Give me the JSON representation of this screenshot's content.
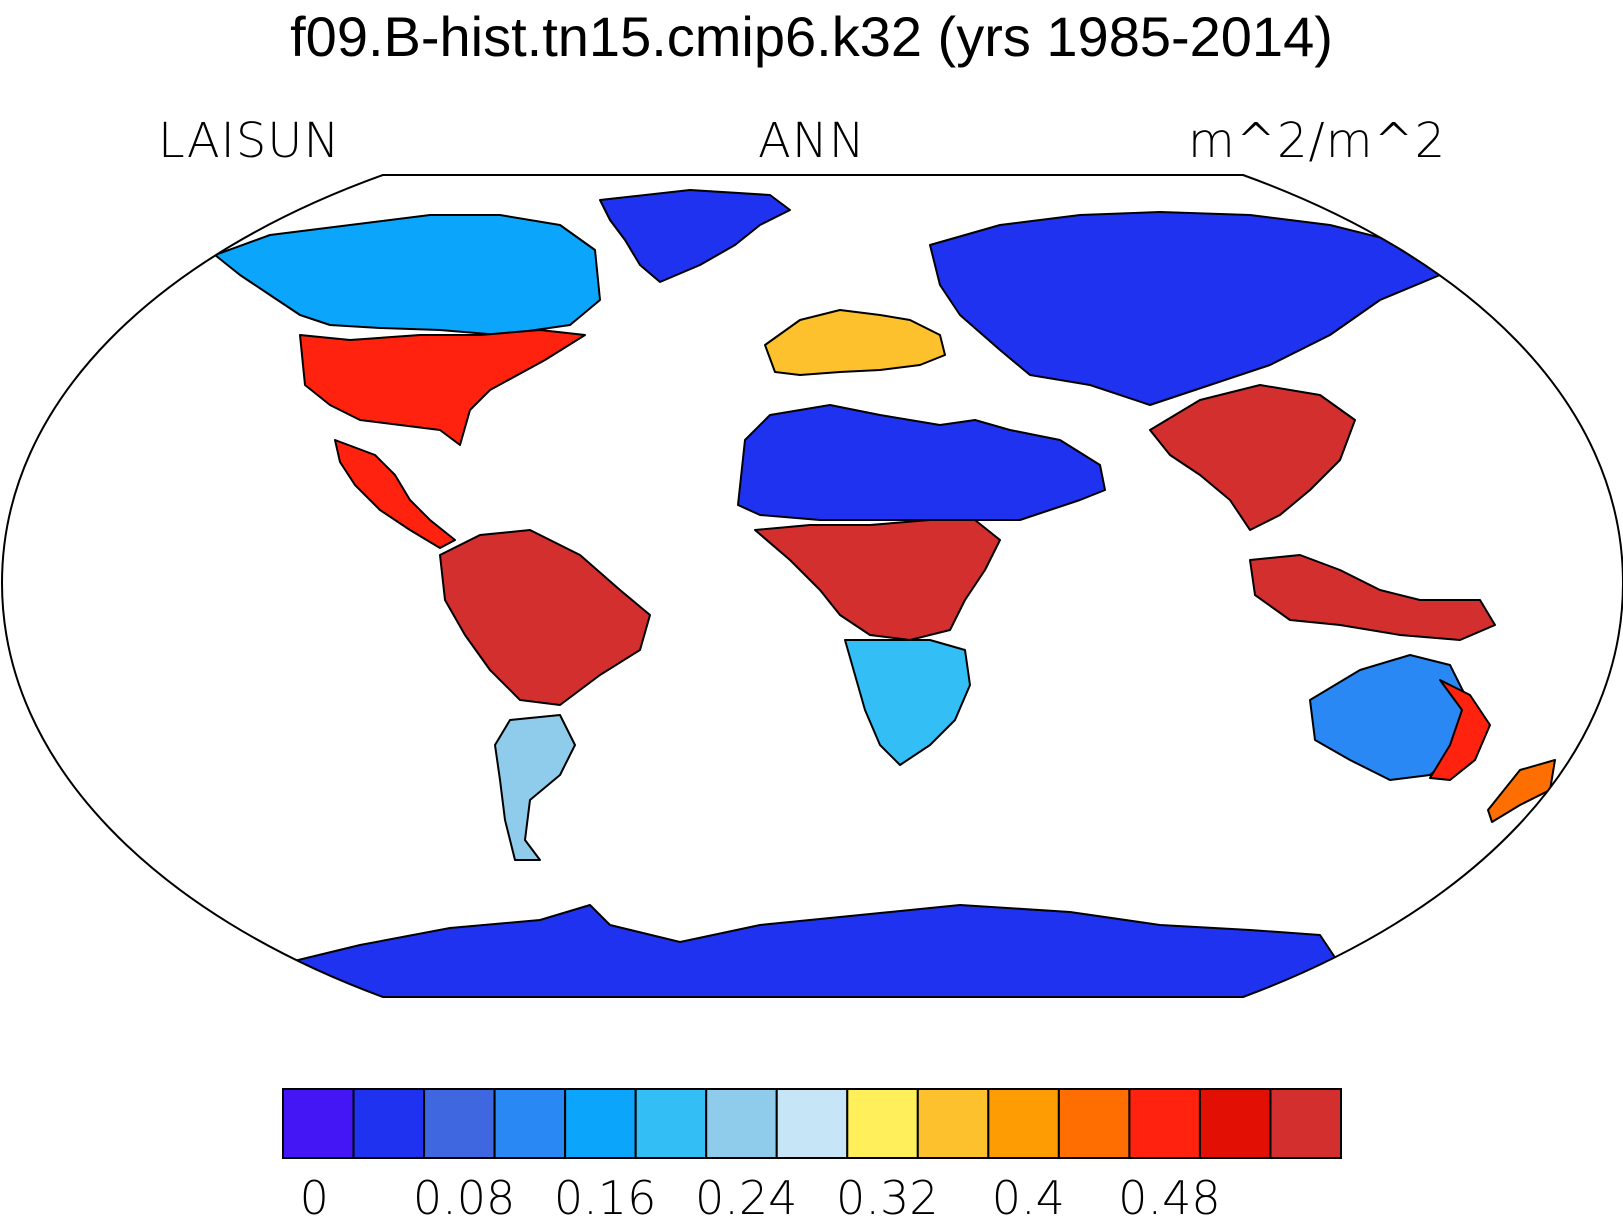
{
  "title": "f09.B-hist.tn15.cmip6.k32 (yrs 1985-2014)",
  "subtitle": {
    "left": "LAISUN",
    "center": "ANN",
    "right": "m^2/m^2"
  },
  "map": {
    "projection": "Robinson",
    "variable": "LAISUN",
    "season": "ANN",
    "units": "m^2/m^2",
    "ocean_color": "#ffffff",
    "coastline_color": "#000000",
    "regions": [
      {
        "name": "Greenland",
        "level_index": 1
      },
      {
        "name": "Antarctica",
        "level_index": 1
      },
      {
        "name": "Sahara and Arabia",
        "level_index": 1
      },
      {
        "name": "Siberia and Central Asia",
        "level_index": 1
      },
      {
        "name": "Canada",
        "level_index": 4
      },
      {
        "name": "Eastern United States",
        "level_index": 12
      },
      {
        "name": "Mexico and Central America",
        "level_index": 12
      },
      {
        "name": "Amazon",
        "level_index": 14
      },
      {
        "name": "Southern South America",
        "level_index": 6
      },
      {
        "name": "Western Europe",
        "level_index": 9
      },
      {
        "name": "Central Africa",
        "level_index": 14
      },
      {
        "name": "Southern Africa",
        "level_index": 5
      },
      {
        "name": "Southeast China and Southeast Asia",
        "level_index": 14
      },
      {
        "name": "Indonesia and New Guinea",
        "level_index": 14
      },
      {
        "name": "Australia interior",
        "level_index": 3
      },
      {
        "name": "Eastern Australia coast",
        "level_index": 12
      },
      {
        "name": "New Zealand",
        "level_index": 11
      }
    ]
  },
  "colorbar": {
    "colors": [
      "#4416f6",
      "#1f32f0",
      "#3f67e0",
      "#2a88f4",
      "#0ca5fc",
      "#33bff5",
      "#8fcbea",
      "#c6e6f7",
      "#ffef5a",
      "#fdc12e",
      "#fe9c04",
      "#ff6e00",
      "#ff230f",
      "#e20f05",
      "#d32f2f"
    ],
    "labels": [
      "0",
      "0.08",
      "0.16",
      "0.24",
      "0.32",
      "0.4",
      "0.48"
    ]
  }
}
